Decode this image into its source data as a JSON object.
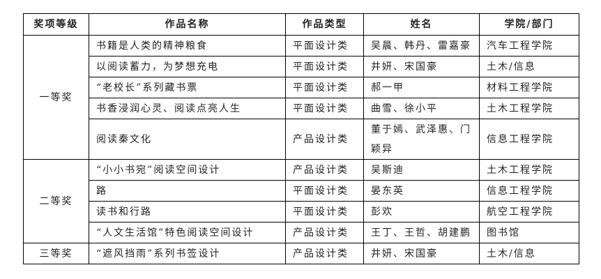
{
  "headers": [
    "奖项等级",
    "作品名称",
    "作品类型",
    "姓名",
    "学院/部门"
  ],
  "groups": [
    {
      "level": "一等奖",
      "rows": [
        {
          "title": "书籍是人类的精神粮食",
          "type": "平面设计类",
          "names": "吴晨、韩丹、雷嘉豪",
          "dept": "汽车工程学院"
        },
        {
          "title": "以阅读蓄力，为梦想充电",
          "type": "平面设计类",
          "names": "井妍、宋国豪",
          "dept": "土木/信息"
        },
        {
          "title": "“老校长”系列藏书票",
          "type": "平面设计类",
          "names": "郝一甲",
          "dept": "材料工程学院"
        },
        {
          "title": "书香浸润心灵、阅读点亮人生",
          "type": "平面设计类",
          "names": "曲雪、徐小平",
          "dept": "土木工程学院"
        },
        {
          "title": "阅读秦文化",
          "type": "产品设计类",
          "names": "董于嫣、武泽惠、门颖异",
          "dept": "信息工程学院"
        }
      ]
    },
    {
      "level": "二等奖",
      "rows": [
        {
          "title": "“小小书宛”阅读空间设计",
          "type": "产品设计类",
          "names": "吴斯迪",
          "dept": "土木工程学院"
        },
        {
          "title": "路",
          "type": "平面设计类",
          "names": "晏东英",
          "dept": "信息工程学院"
        },
        {
          "title": "读书和行路",
          "type": "平面设计类",
          "names": "彭欢",
          "dept": "航空工程学院"
        },
        {
          "title": "“人文生活馆”特色阅读空间设计",
          "type": "产品设计类",
          "names": "王丁、王哲、胡建鹏",
          "dept": "图书馆"
        }
      ]
    },
    {
      "level": "三等奖",
      "rows": [
        {
          "title": "“遮风挡雨”系列书签设计",
          "type": "产品设计类",
          "names": "井妍、宋国豪",
          "dept": "土木/信息"
        }
      ]
    }
  ]
}
